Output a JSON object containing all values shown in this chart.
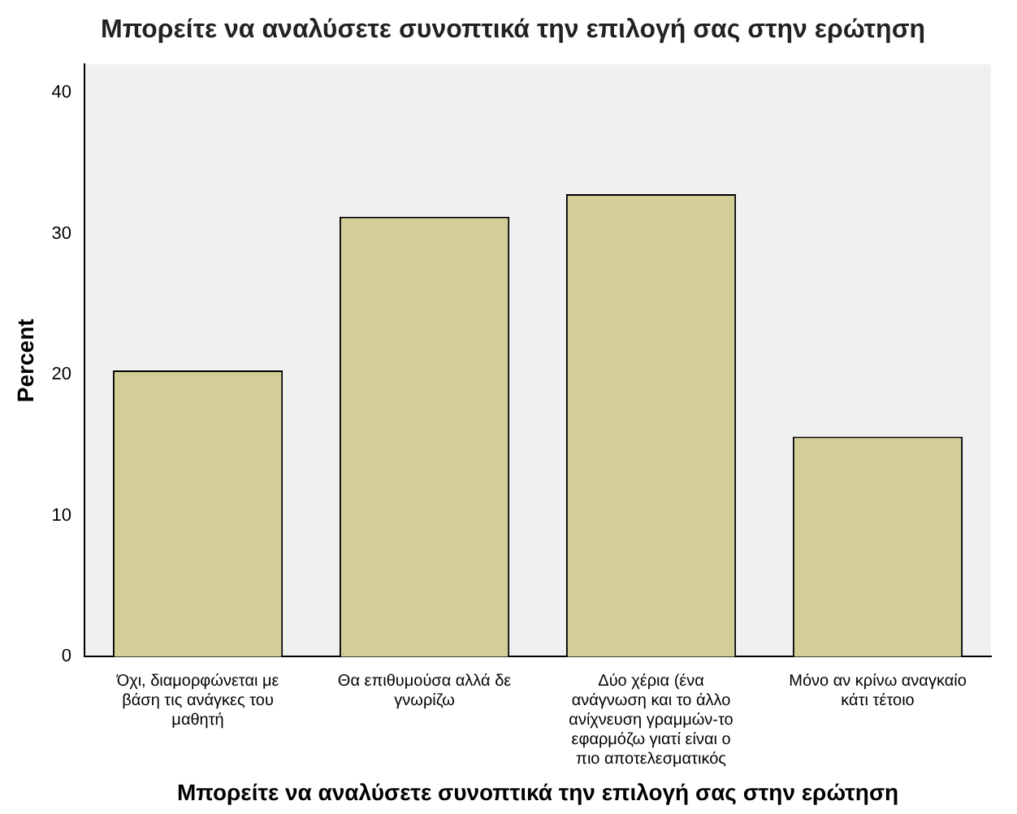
{
  "chart_data": {
    "type": "bar",
    "title": "Μπορείτε να αναλύσετε συνοπτικά την επιλογή σας στην ερώτηση",
    "xlabel": "Μπορείτε να αναλύσετε συνοπτικά την επιλογή σας στην ερώτηση",
    "ylabel": "Percent",
    "categories": [
      "Όχι, διαμορφώνεται με βάση τις ανάγκες του μαθητή",
      "Θα επιθυμούσα αλλά δε γνωρίζω",
      "Δύο χέρια (ένα ανάγνωση και το άλλο ανίχνευση γραμμών-το εφαρμόζω γιατί είναι ο πιο αποτελεσματικός",
      "Μόνο αν κρίνω αναγκαίο κάτι τέτοιο"
    ],
    "values": [
      20.3,
      31.2,
      32.8,
      15.6
    ],
    "color": "#d3ce97",
    "ylim": [
      0,
      42
    ],
    "yticks": [
      0,
      10,
      20,
      30,
      40
    ],
    "grid": false,
    "legend": false
  }
}
